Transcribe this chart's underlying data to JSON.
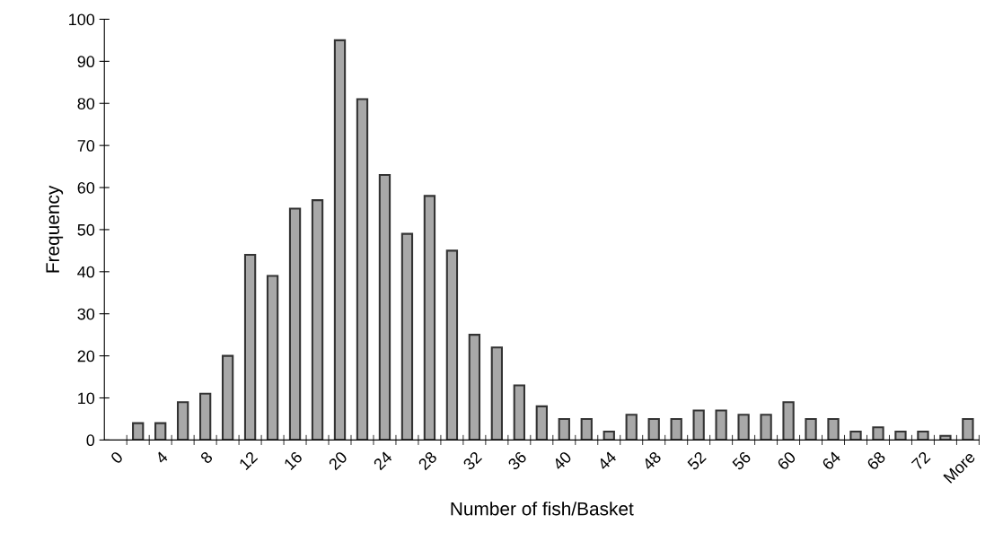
{
  "chart_data": {
    "type": "bar",
    "xlabel": "Number of fish/Basket",
    "ylabel": "Frequency",
    "categories": [
      "0",
      null,
      "4",
      null,
      "8",
      null,
      "12",
      null,
      "16",
      null,
      "20",
      null,
      "24",
      null,
      "28",
      null,
      "32",
      null,
      "36",
      null,
      "40",
      null,
      "44",
      null,
      "48",
      null,
      "52",
      null,
      "56",
      null,
      "60",
      null,
      "64",
      null,
      "68",
      null,
      "72",
      null,
      "More"
    ],
    "values": [
      null,
      4,
      4,
      9,
      11,
      20,
      44,
      39,
      55,
      57,
      95,
      81,
      63,
      49,
      58,
      45,
      25,
      22,
      13,
      8,
      5,
      5,
      2,
      6,
      5,
      5,
      7,
      7,
      6,
      6,
      9,
      5,
      5,
      2,
      3,
      2,
      2,
      1,
      5
    ],
    "color": "#a8a8a8",
    "ylim": [
      0,
      100
    ],
    "yticks": [
      0,
      10,
      20,
      30,
      40,
      50,
      60,
      70,
      80,
      90,
      100
    ],
    "grid": false,
    "legend": false
  }
}
